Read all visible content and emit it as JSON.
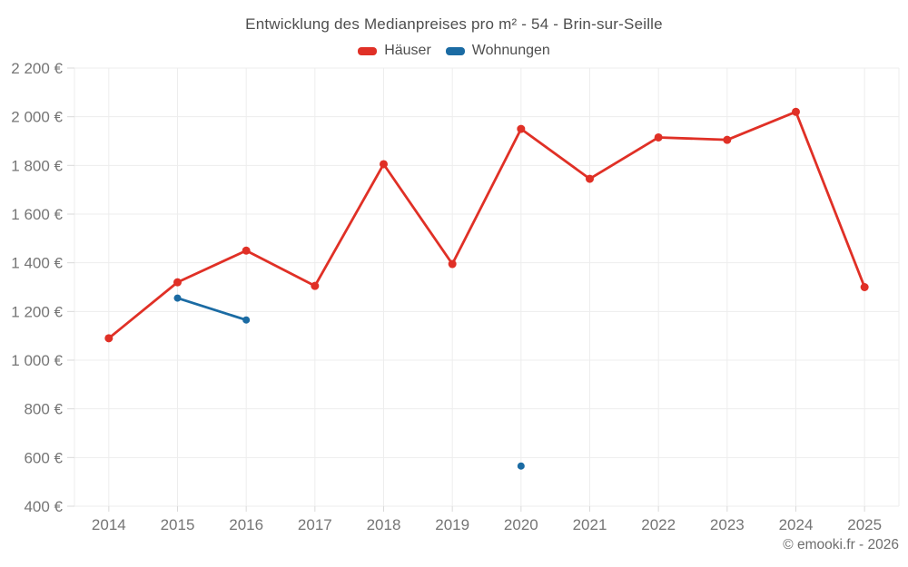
{
  "header": {
    "title": "Entwicklung des Medianpreises pro m² - 54 - Brin-sur-Seille"
  },
  "footer": {
    "credit": "© emooki.fr - 2026"
  },
  "colors": {
    "haeuser": "#e03026",
    "wohnungen": "#1b6ba3",
    "grid": "#ededed",
    "axis_tick": "#d9d9d9",
    "axis_text": "#757575"
  },
  "chart_data": {
    "type": "line",
    "title": "Entwicklung des Medianpreises pro m² - 54 - Brin-sur-Seille",
    "categories": [
      "2014",
      "2015",
      "2016",
      "2017",
      "2018",
      "2019",
      "2020",
      "2021",
      "2022",
      "2023",
      "2024",
      "2025"
    ],
    "series": [
      {
        "name": "Häuser",
        "color": "#e03026",
        "values": [
          1090,
          1320,
          1450,
          1305,
          1805,
          1395,
          1950,
          1745,
          1915,
          1905,
          2020,
          1300
        ]
      },
      {
        "name": "Wohnungen",
        "color": "#1b6ba3",
        "values": [
          null,
          1255,
          1165,
          null,
          null,
          null,
          565,
          null,
          null,
          null,
          null,
          null
        ]
      }
    ],
    "xlabel": "",
    "ylabel": "",
    "ylim": [
      400,
      2200
    ],
    "ytick_step": 200,
    "ytick_format": "{value} €",
    "grid": true,
    "legend_position": "top"
  }
}
